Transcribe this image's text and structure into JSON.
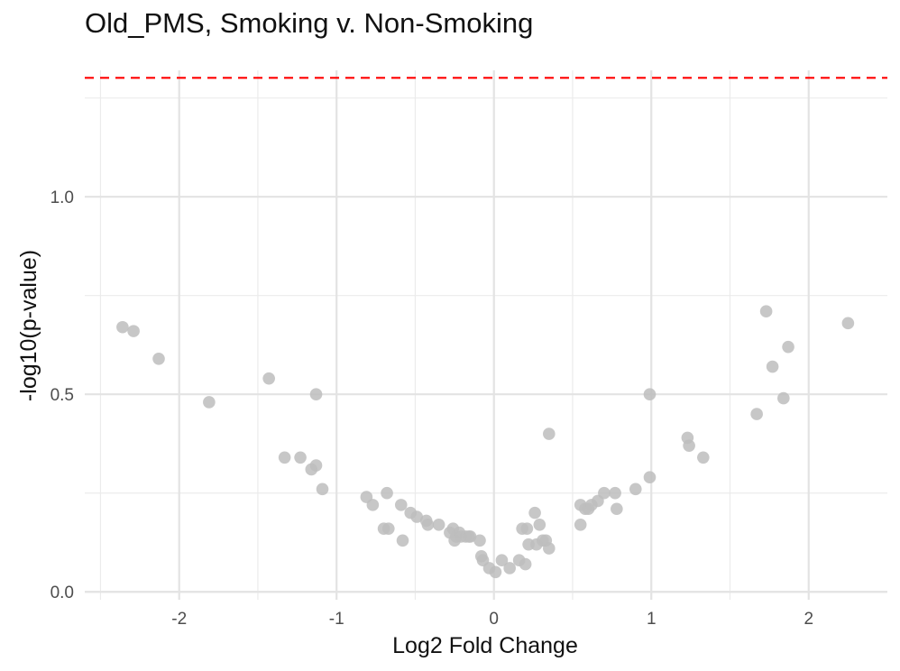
{
  "chart_data": {
    "type": "scatter",
    "title": "Old_PMS, Smoking v. Non-Smoking",
    "xlabel": "Log2 Fold Change",
    "ylabel": "-log10(p-value)",
    "xlim": [
      -2.6,
      2.5
    ],
    "ylim": [
      -0.02,
      1.32
    ],
    "x_ticks": [
      -2,
      -1,
      0,
      1,
      2
    ],
    "x_tick_labels": [
      "-2",
      "-1",
      "0",
      "1",
      "2"
    ],
    "y_ticks": [
      0.0,
      0.5,
      1.0
    ],
    "y_tick_labels": [
      "0.0",
      "0.5",
      "1.0"
    ],
    "grid": true,
    "threshold": {
      "y": 1.301,
      "color": "#ff0000",
      "style": "dashed"
    },
    "point_color": "#bdbdbd",
    "points": [
      [
        -2.36,
        0.67
      ],
      [
        -2.29,
        0.66
      ],
      [
        -2.13,
        0.59
      ],
      [
        -1.81,
        0.48
      ],
      [
        -1.43,
        0.54
      ],
      [
        -1.33,
        0.34
      ],
      [
        -1.23,
        0.34
      ],
      [
        -1.16,
        0.31
      ],
      [
        -1.13,
        0.32
      ],
      [
        -1.13,
        0.5
      ],
      [
        -1.09,
        0.26
      ],
      [
        -0.81,
        0.24
      ],
      [
        -0.77,
        0.22
      ],
      [
        -0.7,
        0.16
      ],
      [
        -0.68,
        0.25
      ],
      [
        -0.67,
        0.16
      ],
      [
        -0.59,
        0.22
      ],
      [
        -0.58,
        0.13
      ],
      [
        -0.53,
        0.2
      ],
      [
        -0.49,
        0.19
      ],
      [
        -0.43,
        0.18
      ],
      [
        -0.42,
        0.17
      ],
      [
        -0.35,
        0.17
      ],
      [
        -0.28,
        0.15
      ],
      [
        -0.26,
        0.16
      ],
      [
        -0.25,
        0.13
      ],
      [
        -0.24,
        0.14
      ],
      [
        -0.22,
        0.15
      ],
      [
        -0.21,
        0.14
      ],
      [
        -0.18,
        0.14
      ],
      [
        -0.16,
        0.14
      ],
      [
        -0.15,
        0.14
      ],
      [
        -0.09,
        0.13
      ],
      [
        -0.08,
        0.09
      ],
      [
        -0.07,
        0.08
      ],
      [
        -0.03,
        0.06
      ],
      [
        0.01,
        0.05
      ],
      [
        0.05,
        0.08
      ],
      [
        0.1,
        0.06
      ],
      [
        0.16,
        0.08
      ],
      [
        0.18,
        0.16
      ],
      [
        0.2,
        0.07
      ],
      [
        0.21,
        0.16
      ],
      [
        0.22,
        0.12
      ],
      [
        0.26,
        0.2
      ],
      [
        0.27,
        0.12
      ],
      [
        0.29,
        0.17
      ],
      [
        0.31,
        0.13
      ],
      [
        0.33,
        0.13
      ],
      [
        0.35,
        0.11
      ],
      [
        0.35,
        0.4
      ],
      [
        0.55,
        0.22
      ],
      [
        0.55,
        0.17
      ],
      [
        0.58,
        0.21
      ],
      [
        0.6,
        0.21
      ],
      [
        0.62,
        0.22
      ],
      [
        0.66,
        0.23
      ],
      [
        0.7,
        0.25
      ],
      [
        0.77,
        0.25
      ],
      [
        0.78,
        0.21
      ],
      [
        0.9,
        0.26
      ],
      [
        0.99,
        0.5
      ],
      [
        0.99,
        0.29
      ],
      [
        1.23,
        0.39
      ],
      [
        1.24,
        0.37
      ],
      [
        1.33,
        0.34
      ],
      [
        1.67,
        0.45
      ],
      [
        1.73,
        0.71
      ],
      [
        1.77,
        0.57
      ],
      [
        1.84,
        0.49
      ],
      [
        1.87,
        0.62
      ],
      [
        2.25,
        0.68
      ]
    ]
  }
}
